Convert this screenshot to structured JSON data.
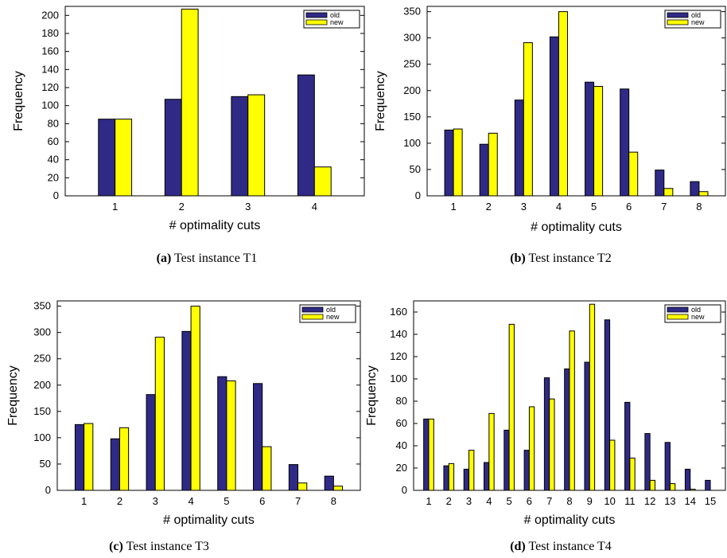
{
  "colors": {
    "old": "#2f2a86",
    "new": "#ffff00",
    "stroke": "#000000"
  },
  "chart_data": [
    {
      "type": "bar",
      "caption_tag": "(a)",
      "caption_text": "Test instance T1",
      "xlabel": "# optimality cuts",
      "ylabel": "Frequency",
      "categories": [
        "1",
        "2",
        "3",
        "4"
      ],
      "ylim": [
        0,
        210
      ],
      "yticks": [
        0,
        20,
        40,
        60,
        80,
        100,
        120,
        140,
        160,
        180,
        200
      ],
      "legend_position": "top-right",
      "series": [
        {
          "name": "old",
          "values": [
            85,
            107,
            110,
            134
          ]
        },
        {
          "name": "new",
          "values": [
            85,
            207,
            112,
            32
          ]
        }
      ]
    },
    {
      "type": "bar",
      "caption_tag": "(b)",
      "caption_text": "Test instance T2",
      "xlabel": "# optimality cuts",
      "ylabel": "Frequency",
      "categories": [
        "1",
        "2",
        "3",
        "4",
        "5",
        "6",
        "7",
        "8"
      ],
      "ylim": [
        0,
        360
      ],
      "yticks": [
        0,
        50,
        100,
        150,
        200,
        250,
        300,
        350
      ],
      "legend_position": "top-right",
      "series": [
        {
          "name": "old",
          "values": [
            125,
            98,
            182,
            302,
            216,
            203,
            49,
            27
          ]
        },
        {
          "name": "new",
          "values": [
            127,
            119,
            291,
            350,
            208,
            83,
            14,
            8
          ]
        }
      ]
    },
    {
      "type": "bar",
      "caption_tag": "(c)",
      "caption_text": "Test instance T3",
      "xlabel": "# optimality cuts",
      "ylabel": "Frequency",
      "categories": [
        "1",
        "2",
        "3",
        "4",
        "5",
        "6",
        "7",
        "8"
      ],
      "ylim": [
        0,
        360
      ],
      "yticks": [
        0,
        50,
        100,
        150,
        200,
        250,
        300,
        350
      ],
      "legend_position": "top-right",
      "series": [
        {
          "name": "old",
          "values": [
            125,
            98,
            182,
            302,
            216,
            203,
            49,
            27
          ]
        },
        {
          "name": "new",
          "values": [
            127,
            119,
            291,
            350,
            208,
            83,
            14,
            8
          ]
        }
      ]
    },
    {
      "type": "bar",
      "caption_tag": "(d)",
      "caption_text": "Test instance T4",
      "xlabel": "# optimality cuts",
      "ylabel": "Frequency",
      "categories": [
        "1",
        "2",
        "3",
        "4",
        "5",
        "6",
        "7",
        "8",
        "9",
        "10",
        "11",
        "12",
        "13",
        "14",
        "15"
      ],
      "ylim": [
        0,
        170
      ],
      "yticks": [
        0,
        20,
        40,
        60,
        80,
        100,
        120,
        140,
        160
      ],
      "legend_position": "top-right",
      "series": [
        {
          "name": "old",
          "values": [
            64,
            22,
            19,
            25,
            54,
            36,
            101,
            109,
            115,
            153,
            79,
            51,
            43,
            19,
            9
          ]
        },
        {
          "name": "new",
          "values": [
            64,
            24,
            36,
            69,
            149,
            75,
            82,
            143,
            167,
            45,
            29,
            9,
            6,
            1,
            0
          ]
        }
      ]
    }
  ]
}
